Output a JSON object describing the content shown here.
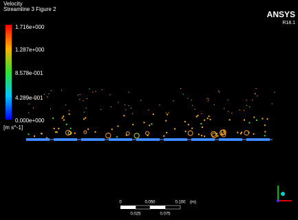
{
  "header": {
    "title": "Velocity",
    "subtitle": "Streamline 3 Figure 2"
  },
  "legend": {
    "labels": [
      "1.716e+000",
      "1.287e+000",
      "8.578e-001",
      "4.289e-001",
      "0.000e+000"
    ],
    "unit": "[m s^-1]"
  },
  "logo": {
    "name": "ANSYS",
    "version": "R18.1"
  },
  "scale_bar": {
    "top_labels": [
      "0",
      "0.050",
      "0.100"
    ],
    "unit": "(m)",
    "bottom_labels": [
      "0.025",
      "0.075"
    ]
  }
}
